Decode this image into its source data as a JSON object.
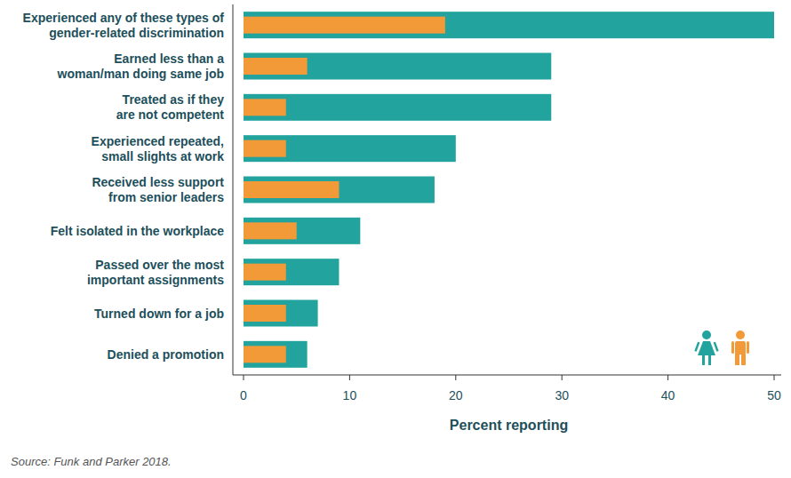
{
  "chart_data": {
    "type": "bar",
    "orientation": "horizontal",
    "stacked": false,
    "grid": false,
    "data_labels": false,
    "legend": "lower right",
    "categories": [
      "Experienced any of these types of\ngender-related discrimination",
      "Earned less than a\nwoman/man doing same job",
      "Treated as if they\nare not competent",
      "Experienced repeated,\nsmall slights at work",
      "Received less support\nfrom senior leaders",
      "Felt isolated in the workplace",
      "Passed over the most\nimportant assignments",
      "Turned down for a job",
      "Denied a promotion"
    ],
    "series": [
      {
        "color": "#22a39e",
        "values": [
          50,
          29,
          29,
          20,
          18,
          11,
          9,
          7,
          6
        ]
      },
      {
        "color": "#f39a38",
        "values": [
          19,
          6,
          4,
          4,
          9,
          5,
          4,
          4,
          4
        ]
      }
    ],
    "xlabel": "Percent reporting",
    "xlim": [
      0,
      50
    ],
    "xticks": [
      0,
      10,
      20,
      30,
      40,
      50
    ],
    "annotations": [
      "Source: Funk and Parker 2018."
    ]
  }
}
